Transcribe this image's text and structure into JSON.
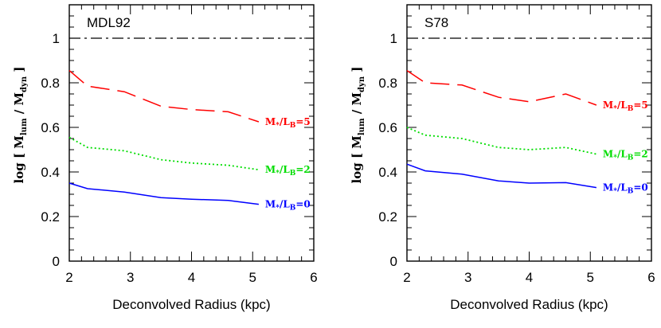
{
  "chart_data": [
    {
      "type": "line",
      "title": "MDL92",
      "xlabel": "Deconvolved Radius (kpc)",
      "ylabel": {
        "prefix": "log [  M",
        "num_sub": "lum",
        "mid": "  /  M",
        "den_sub": "dyn",
        "suffix": "  ]"
      },
      "xlim": [
        2,
        6
      ],
      "ylim": [
        0,
        1.15
      ],
      "xticks": [
        "2",
        "3",
        "4",
        "5",
        "6"
      ],
      "yticks": [
        "0",
        "0.2",
        "0.4",
        "0.6",
        "0.8",
        "1"
      ],
      "reference_line": {
        "y": 1,
        "style": "dash-dot",
        "color": "#000000"
      },
      "series": [
        {
          "name": "M*/LB=5",
          "label_main": "M",
          "label_sub1": "*",
          "label_mid": "/L",
          "label_sub2": "B",
          "label_end": "=5",
          "color": "#ff0000",
          "style": "long-dash",
          "x": [
            2.0,
            2.3,
            2.9,
            3.5,
            4.0,
            4.6,
            5.1
          ],
          "y": [
            0.855,
            0.785,
            0.76,
            0.695,
            0.68,
            0.67,
            0.625
          ]
        },
        {
          "name": "M*/LB=2",
          "label_main": "M",
          "label_sub1": "*",
          "label_mid": "/L",
          "label_sub2": "B",
          "label_end": "=2",
          "color": "#00dd00",
          "style": "dotted",
          "x": [
            2.0,
            2.3,
            2.9,
            3.5,
            4.0,
            4.6,
            5.1
          ],
          "y": [
            0.555,
            0.51,
            0.495,
            0.455,
            0.44,
            0.43,
            0.41
          ]
        },
        {
          "name": "M*/LB=0",
          "label_main": "M",
          "label_sub1": "*",
          "label_mid": "/L",
          "label_sub2": "B",
          "label_end": "=0",
          "color": "#0000ff",
          "style": "solid",
          "x": [
            2.0,
            2.3,
            2.9,
            3.5,
            4.0,
            4.6,
            5.1
          ],
          "y": [
            0.35,
            0.325,
            0.31,
            0.285,
            0.278,
            0.272,
            0.255
          ]
        }
      ]
    },
    {
      "type": "line",
      "title": "S78",
      "xlabel": "Deconvolved Radius (kpc)",
      "ylabel": {
        "prefix": "log [  M",
        "num_sub": "lum",
        "mid": "  /  M",
        "den_sub": "dyn",
        "suffix": "  ]"
      },
      "xlim": [
        2,
        6
      ],
      "ylim": [
        0,
        1.15
      ],
      "xticks": [
        "2",
        "3",
        "4",
        "5",
        "6"
      ],
      "yticks": [
        "0",
        "0.2",
        "0.4",
        "0.6",
        "0.8",
        "1"
      ],
      "reference_line": {
        "y": 1,
        "style": "dash-dot",
        "color": "#000000"
      },
      "series": [
        {
          "name": "M*/LB=5",
          "label_main": "M",
          "label_sub1": "*",
          "label_mid": "/L",
          "label_sub2": "B",
          "label_end": "=5",
          "color": "#ff0000",
          "style": "long-dash",
          "x": [
            2.0,
            2.3,
            2.9,
            3.5,
            4.0,
            4.6,
            5.1
          ],
          "y": [
            0.855,
            0.8,
            0.79,
            0.735,
            0.715,
            0.75,
            0.7
          ]
        },
        {
          "name": "M*/LB=2",
          "label_main": "M",
          "label_sub1": "*",
          "label_mid": "/L",
          "label_sub2": "B",
          "label_end": "=2",
          "color": "#00dd00",
          "style": "dotted",
          "x": [
            2.0,
            2.3,
            2.9,
            3.5,
            4.0,
            4.6,
            5.1
          ],
          "y": [
            0.6,
            0.565,
            0.55,
            0.51,
            0.5,
            0.51,
            0.48
          ]
        },
        {
          "name": "M*/LB=0",
          "label_main": "M",
          "label_sub1": "*",
          "label_mid": "/L",
          "label_sub2": "B",
          "label_end": "=0",
          "color": "#0000ff",
          "style": "solid",
          "x": [
            2.0,
            2.3,
            2.9,
            3.5,
            4.0,
            4.6,
            5.1
          ],
          "y": [
            0.435,
            0.405,
            0.39,
            0.36,
            0.35,
            0.352,
            0.33
          ]
        }
      ]
    }
  ]
}
